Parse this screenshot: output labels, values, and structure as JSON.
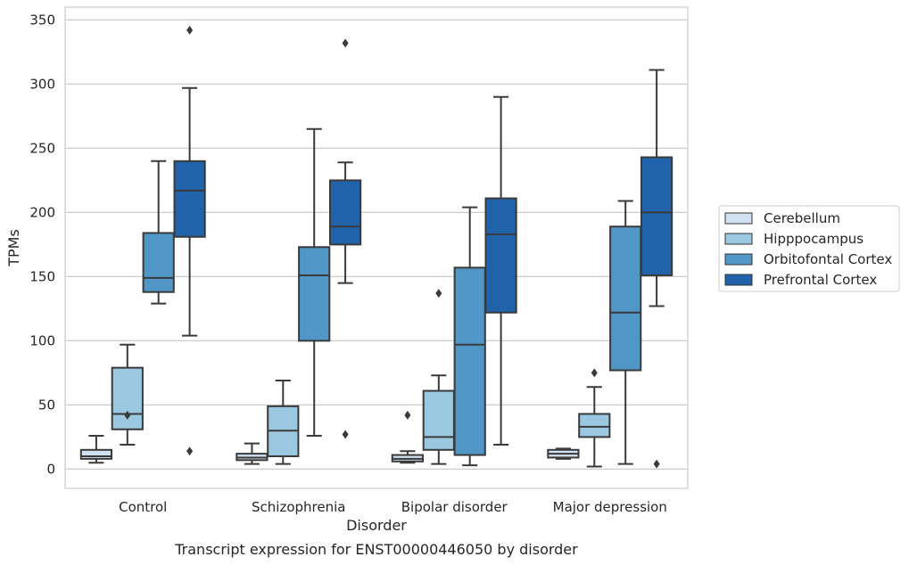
{
  "chart_data": {
    "type": "box",
    "title": "",
    "caption": "Transcript expression for ENST00000446050 by disorder",
    "xlabel": "Disorder",
    "ylabel": "TPMs",
    "ylim": [
      -15,
      360
    ],
    "yticks": [
      0,
      50,
      100,
      150,
      200,
      250,
      300,
      350
    ],
    "grid": "horizontal",
    "legend_position": "right",
    "categories": [
      "Control",
      "Schizophrenia",
      "Bipolar disorder",
      "Major depression"
    ],
    "series": [
      {
        "name": "Cerebellum",
        "color": "#d0e1f2",
        "boxes": [
          {
            "whisker_low": 5,
            "q1": 8,
            "median": 10,
            "q3": 15,
            "whisker_high": 26,
            "outliers": []
          },
          {
            "whisker_low": 4,
            "q1": 7,
            "median": 9,
            "q3": 12,
            "whisker_high": 20,
            "outliers": []
          },
          {
            "whisker_low": 5,
            "q1": 6,
            "median": 8,
            "q3": 11,
            "whisker_high": 14,
            "outliers": [
              42
            ]
          },
          {
            "whisker_low": 8,
            "q1": 9,
            "median": 12,
            "q3": 15,
            "whisker_high": 16,
            "outliers": []
          }
        ]
      },
      {
        "name": "Hipppocampus",
        "color": "#9ac8e0",
        "boxes": [
          {
            "whisker_low": 19,
            "q1": 31,
            "median": 43,
            "q3": 79,
            "whisker_high": 97,
            "outliers": [
              42
            ]
          },
          {
            "whisker_low": 4,
            "q1": 10,
            "median": 30,
            "q3": 49,
            "whisker_high": 69,
            "outliers": []
          },
          {
            "whisker_low": 4,
            "q1": 15,
            "median": 25,
            "q3": 61,
            "whisker_high": 73,
            "outliers": [
              137
            ]
          },
          {
            "whisker_low": 2,
            "q1": 25,
            "median": 33,
            "q3": 43,
            "whisker_high": 64,
            "outliers": [
              75
            ]
          }
        ]
      },
      {
        "name": "Orbitofontal Cortex",
        "color": "#5096c7",
        "boxes": [
          {
            "whisker_low": 129,
            "q1": 138,
            "median": 149,
            "q3": 184,
            "whisker_high": 240,
            "outliers": []
          },
          {
            "whisker_low": 26,
            "q1": 100,
            "median": 151,
            "q3": 173,
            "whisker_high": 265,
            "outliers": []
          },
          {
            "whisker_low": 3,
            "q1": 11,
            "median": 97,
            "q3": 157,
            "whisker_high": 204,
            "outliers": []
          },
          {
            "whisker_low": 4,
            "q1": 77,
            "median": 122,
            "q3": 189,
            "whisker_high": 209,
            "outliers": []
          }
        ]
      },
      {
        "name": "Prefrontal Cortex",
        "color": "#2163aa",
        "boxes": [
          {
            "whisker_low": 104,
            "q1": 181,
            "median": 217,
            "q3": 240,
            "whisker_high": 297,
            "outliers": [
              342,
              14
            ]
          },
          {
            "whisker_low": 145,
            "q1": 175,
            "median": 189,
            "q3": 225,
            "whisker_high": 239,
            "outliers": [
              332,
              27
            ]
          },
          {
            "whisker_low": 19,
            "q1": 122,
            "median": 183,
            "q3": 211,
            "whisker_high": 290,
            "outliers": []
          },
          {
            "whisker_low": 127,
            "q1": 151,
            "median": 200,
            "q3": 243,
            "whisker_high": 311,
            "outliers": [
              4
            ]
          }
        ]
      }
    ]
  }
}
